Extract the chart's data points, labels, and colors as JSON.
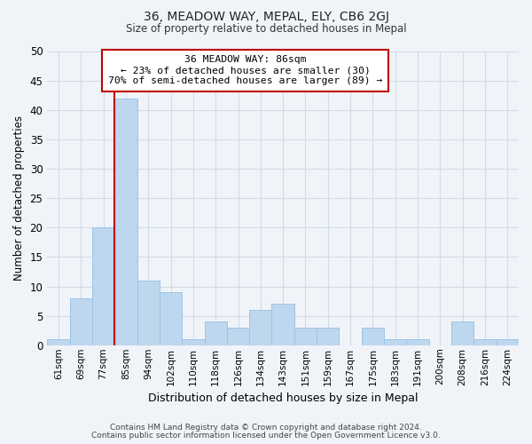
{
  "title_line1": "36, MEADOW WAY, MEPAL, ELY, CB6 2GJ",
  "title_line2": "Size of property relative to detached houses in Mepal",
  "xlabel": "Distribution of detached houses by size in Mepal",
  "ylabel": "Number of detached properties",
  "footer_line1": "Contains HM Land Registry data © Crown copyright and database right 2024.",
  "footer_line2": "Contains public sector information licensed under the Open Government Licence v3.0.",
  "bin_labels": [
    "61sqm",
    "69sqm",
    "77sqm",
    "85sqm",
    "94sqm",
    "102sqm",
    "110sqm",
    "118sqm",
    "126sqm",
    "134sqm",
    "143sqm",
    "151sqm",
    "159sqm",
    "167sqm",
    "175sqm",
    "183sqm",
    "191sqm",
    "200sqm",
    "208sqm",
    "216sqm",
    "224sqm"
  ],
  "bin_counts": [
    1,
    8,
    20,
    42,
    11,
    9,
    1,
    4,
    3,
    6,
    7,
    3,
    3,
    0,
    3,
    1,
    1,
    0,
    4,
    1,
    1
  ],
  "bar_color": "#bdd7ee",
  "bar_edge_color": "#9dc3e6",
  "vline_color": "#c00000",
  "ylim": [
    0,
    50
  ],
  "yticks": [
    0,
    5,
    10,
    15,
    20,
    25,
    30,
    35,
    40,
    45,
    50
  ],
  "annotation_title": "36 MEADOW WAY: 86sqm",
  "annotation_line1": "← 23% of detached houses are smaller (30)",
  "annotation_line2": "70% of semi-detached houses are larger (89) →",
  "annotation_box_color": "#ffffff",
  "annotation_box_edge": "#c00000",
  "background_color": "#f0f4f9",
  "plot_bg_color": "#f0f4f9",
  "grid_color": "#d0dce8"
}
